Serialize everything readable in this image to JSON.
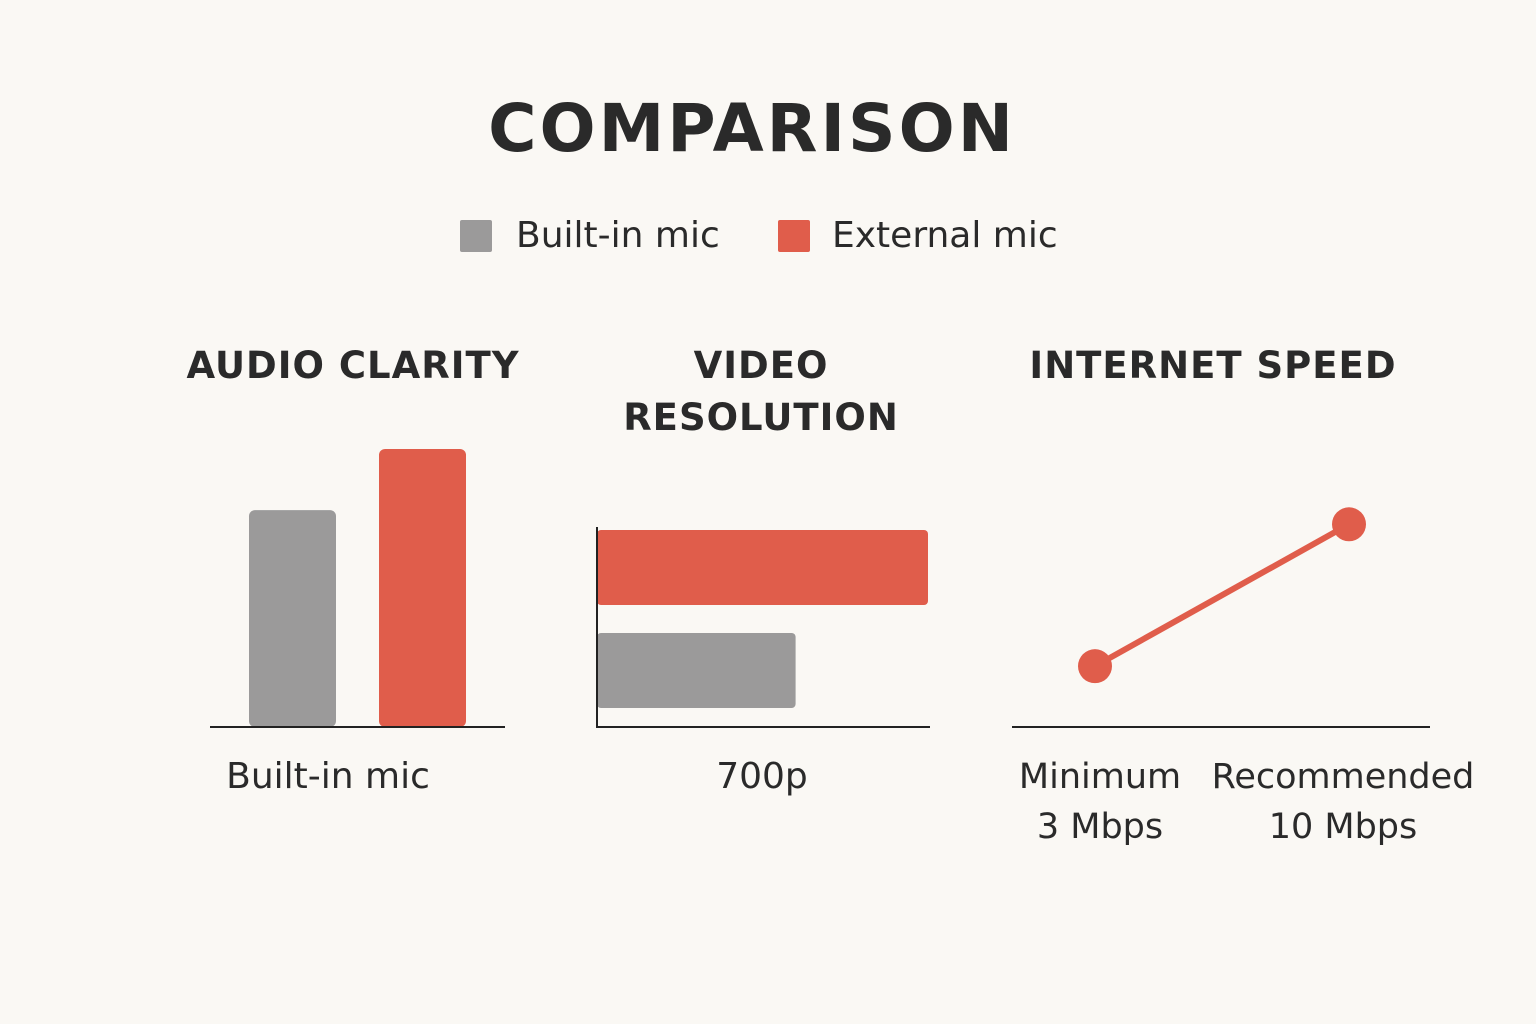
{
  "title": "COMPARISON",
  "chart_data": [
    {
      "type": "bar",
      "title": "AUDIO CLARITY",
      "categories": [
        "Built-in mic"
      ],
      "series": [
        {
          "name": "Built-in mic",
          "color": "#9b9a9a",
          "values": [
            78
          ]
        },
        {
          "name": "External mic",
          "color": "#e05d4b",
          "values": [
            100
          ]
        }
      ],
      "ylim": [
        0,
        100
      ]
    },
    {
      "type": "hbar",
      "title": "VIDEO RESOLUTION",
      "categories": [
        "700p"
      ],
      "series": [
        {
          "name": "Built-in mic",
          "color": "#9b9a9a",
          "values": [
            60
          ]
        },
        {
          "name": "External mic",
          "color": "#e05d4b",
          "values": [
            100
          ]
        }
      ],
      "xlim": [
        0,
        100
      ]
    },
    {
      "type": "line",
      "title": "INTERNET SPEED",
      "categories": [
        "Minimum",
        "Recommended"
      ],
      "values": [
        3,
        10
      ],
      "value_labels": [
        "3 Mbps",
        "10 Mbps"
      ],
      "color": "#e05d4b",
      "ylim": [
        0,
        11
      ]
    }
  ]
}
